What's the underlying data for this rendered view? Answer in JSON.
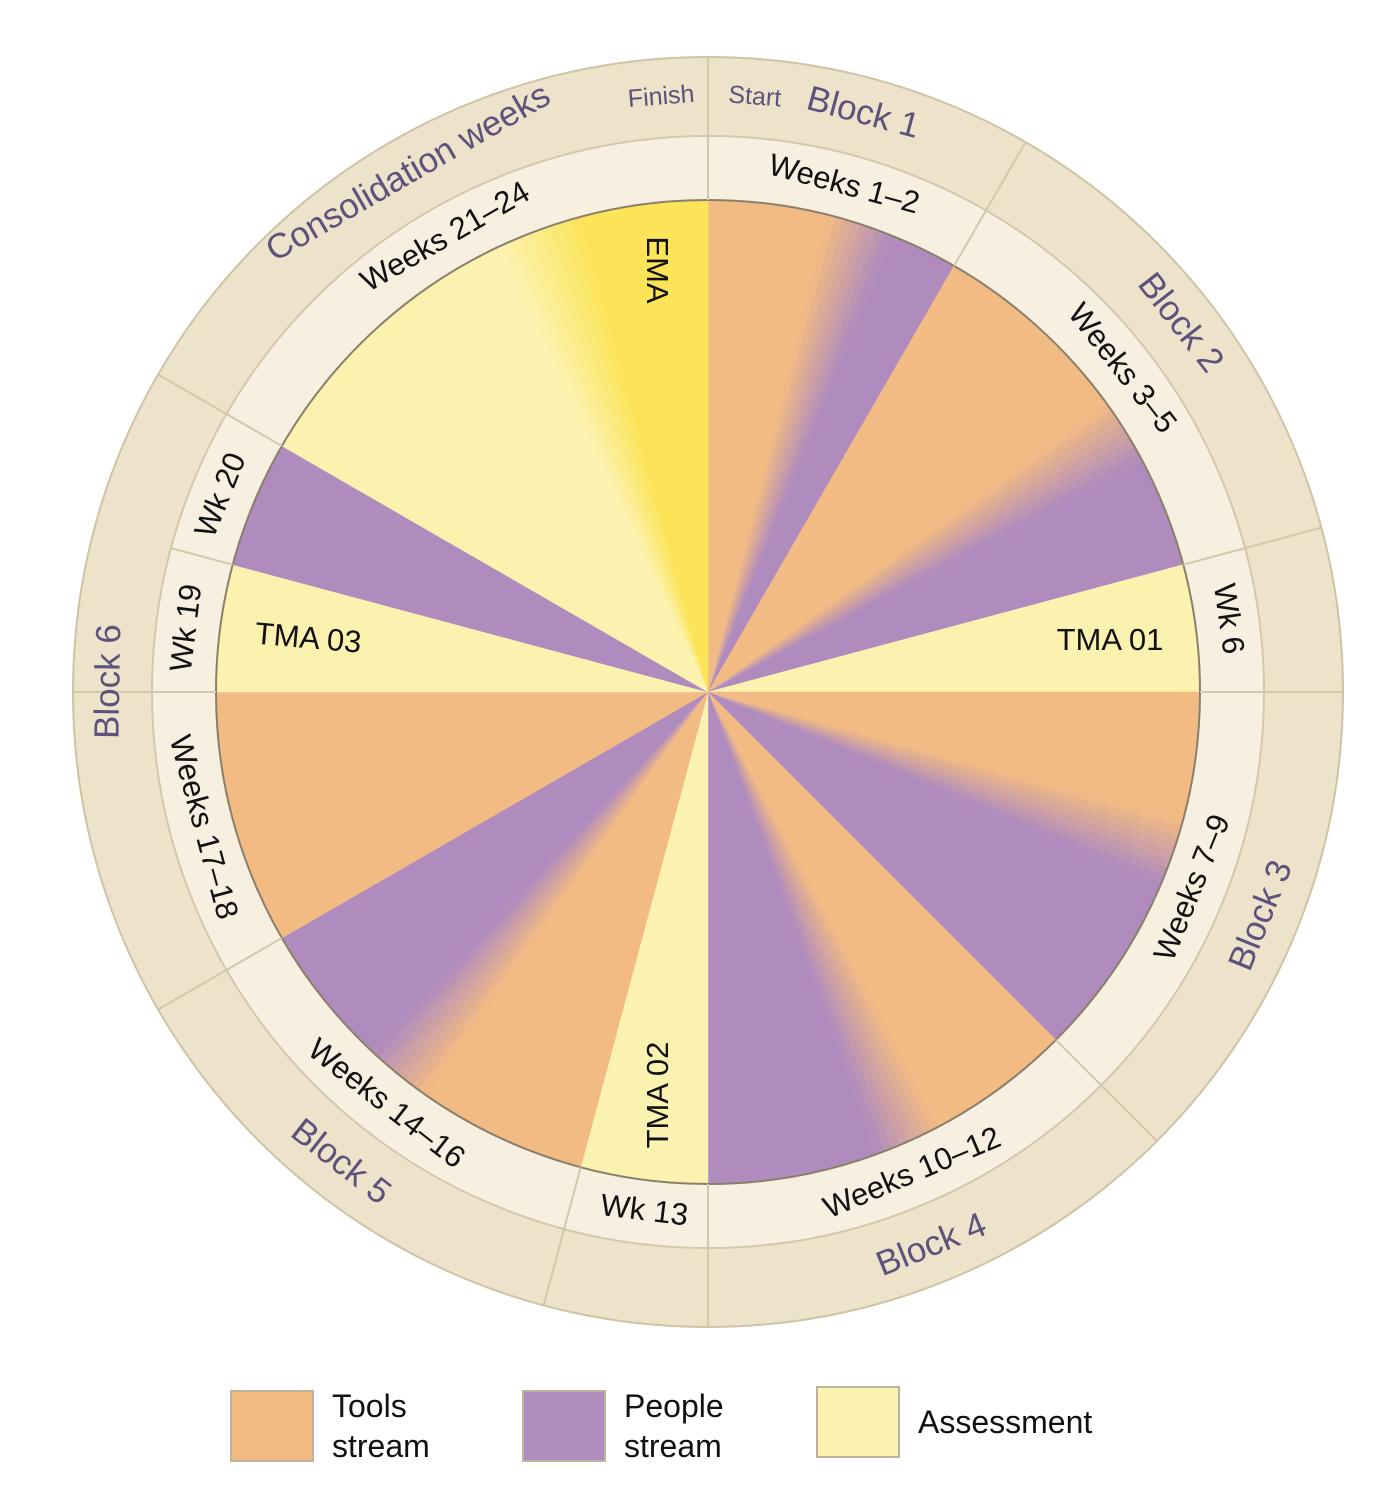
{
  "finish": "Finish",
  "start": "Start",
  "blocks": [
    "Block 1",
    "Block 2",
    "Block 3",
    "Block 4",
    "Block 5",
    "Block 6",
    "Consolidation weeks"
  ],
  "weeks": [
    "Weeks 1–2",
    "Weeks 3–5",
    "Wk 6",
    "Weeks 7–9",
    "Weeks 10–12",
    "Wk 13",
    "Weeks 14–16",
    "Weeks 17–18",
    "Wk 19",
    "Wk 20",
    "Weeks 21–24"
  ],
  "inner_labels": [
    "TMA 01",
    "TMA 02",
    "TMA 03",
    "EMA"
  ],
  "legend": [
    "Tools stream",
    "People stream",
    "Assessment"
  ]
}
